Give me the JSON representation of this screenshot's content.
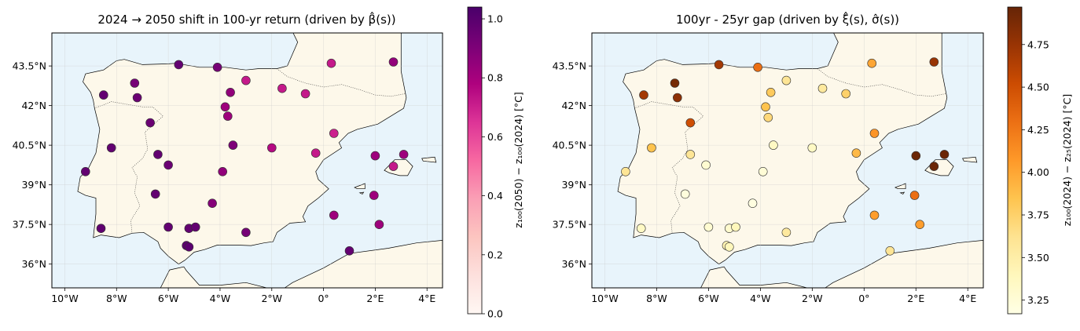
{
  "chart_data": [
    {
      "type": "scatter",
      "title": "2024 → 2050 shift in 100-yr return (driven by β̂(s))",
      "xlabel": "",
      "ylabel": "",
      "xlim": [
        -10.5,
        4.6
      ],
      "ylim": [
        35.1,
        44.75
      ],
      "x_ticks": [
        -10,
        -8,
        -6,
        -4,
        -2,
        0,
        2,
        4
      ],
      "x_tick_labels": [
        "10°W",
        "8°W",
        "6°W",
        "4°W",
        "2°W",
        "0°",
        "2°E",
        "4°E"
      ],
      "y_ticks": [
        36,
        37.5,
        39,
        40.5,
        42,
        43.5
      ],
      "y_tick_labels": [
        "36°N",
        "37.5°N",
        "39°N",
        "40.5°N",
        "42°N",
        "43.5°N"
      ],
      "colorbar": {
        "label": "z₁₀₀(2050) − z₁₀₀(2024) [°C]",
        "range": [
          0.0,
          1.04
        ],
        "ticks": [
          0.0,
          0.2,
          0.4,
          0.6,
          0.8,
          1.0
        ],
        "tick_labels": [
          "0.0",
          "0.2",
          "0.4",
          "0.6",
          "0.8",
          "1.0"
        ],
        "colormap": "RdPu",
        "stops": [
          "#fff7f3",
          "#fde0dd",
          "#fcc5c0",
          "#fa9fb5",
          "#f768a1",
          "#dd3497",
          "#ae017e",
          "#7a0177",
          "#49006a"
        ]
      },
      "points": [
        {
          "lon": -5.6,
          "lat": 43.55,
          "value": 0.97
        },
        {
          "lon": -4.1,
          "lat": 43.45,
          "value": 0.92
        },
        {
          "lon": 0.3,
          "lat": 43.6,
          "value": 0.72
        },
        {
          "lon": 2.7,
          "lat": 43.65,
          "value": 0.85
        },
        {
          "lon": -7.3,
          "lat": 42.85,
          "value": 0.92
        },
        {
          "lon": -8.5,
          "lat": 42.4,
          "value": 0.97
        },
        {
          "lon": -7.2,
          "lat": 42.3,
          "value": 0.95
        },
        {
          "lon": -3.0,
          "lat": 42.95,
          "value": 0.72
        },
        {
          "lon": -3.6,
          "lat": 42.5,
          "value": 0.85
        },
        {
          "lon": -1.6,
          "lat": 42.65,
          "value": 0.72
        },
        {
          "lon": -0.7,
          "lat": 42.45,
          "value": 0.72
        },
        {
          "lon": -3.8,
          "lat": 41.95,
          "value": 0.82
        },
        {
          "lon": -6.7,
          "lat": 41.35,
          "value": 0.95
        },
        {
          "lon": -3.7,
          "lat": 41.6,
          "value": 0.82
        },
        {
          "lon": 0.4,
          "lat": 40.95,
          "value": 0.7
        },
        {
          "lon": -8.2,
          "lat": 40.4,
          "value": 0.97
        },
        {
          "lon": -3.5,
          "lat": 40.5,
          "value": 0.9
        },
        {
          "lon": -2.0,
          "lat": 40.4,
          "value": 0.76
        },
        {
          "lon": -0.3,
          "lat": 40.2,
          "value": 0.72
        },
        {
          "lon": -6.4,
          "lat": 40.15,
          "value": 0.97
        },
        {
          "lon": 2.0,
          "lat": 40.1,
          "value": 0.82
        },
        {
          "lon": 3.1,
          "lat": 40.15,
          "value": 0.82
        },
        {
          "lon": -9.2,
          "lat": 39.5,
          "value": 0.97
        },
        {
          "lon": -6.0,
          "lat": 39.75,
          "value": 0.95
        },
        {
          "lon": -3.9,
          "lat": 39.5,
          "value": 0.85
        },
        {
          "lon": 2.7,
          "lat": 39.7,
          "value": 0.72
        },
        {
          "lon": -6.5,
          "lat": 38.65,
          "value": 0.97
        },
        {
          "lon": 1.95,
          "lat": 38.6,
          "value": 0.82
        },
        {
          "lon": -4.3,
          "lat": 38.3,
          "value": 0.88
        },
        {
          "lon": 0.4,
          "lat": 37.85,
          "value": 0.82
        },
        {
          "lon": 2.15,
          "lat": 37.5,
          "value": 0.82
        },
        {
          "lon": -8.6,
          "lat": 37.35,
          "value": 0.98
        },
        {
          "lon": -6.0,
          "lat": 37.4,
          "value": 0.97
        },
        {
          "lon": -5.2,
          "lat": 37.35,
          "value": 0.97
        },
        {
          "lon": -4.95,
          "lat": 37.4,
          "value": 0.97
        },
        {
          "lon": -3.0,
          "lat": 37.2,
          "value": 0.92
        },
        {
          "lon": -5.3,
          "lat": 36.7,
          "value": 0.99
        },
        {
          "lon": -5.2,
          "lat": 36.65,
          "value": 0.99
        },
        {
          "lon": 1.0,
          "lat": 36.5,
          "value": 0.97
        }
      ]
    },
    {
      "type": "scatter",
      "title": "100yr - 25yr gap (driven by ξ̂(s), σ̂(s))",
      "xlabel": "",
      "ylabel": "",
      "xlim": [
        -10.5,
        4.6
      ],
      "ylim": [
        35.1,
        44.75
      ],
      "x_ticks": [
        -10,
        -8,
        -6,
        -4,
        -2,
        0,
        2,
        4
      ],
      "x_tick_labels": [
        "10°W",
        "8°W",
        "6°W",
        "4°W",
        "2°W",
        "0°",
        "2°E",
        "4°E"
      ],
      "y_ticks": [
        36,
        37.5,
        39,
        40.5,
        42,
        43.5
      ],
      "y_tick_labels": [
        "36°N",
        "37.5°N",
        "39°N",
        "40.5°N",
        "42°N",
        "43.5°N"
      ],
      "colorbar": {
        "label": "z₁₀₀(2024) − z₂₅(2024) [°C]",
        "range": [
          3.17,
          4.97
        ],
        "ticks": [
          3.25,
          3.5,
          3.75,
          4.0,
          4.25,
          4.5,
          4.75
        ],
        "tick_labels": [
          "3.25",
          "3.50",
          "3.75",
          "4.00",
          "4.25",
          "4.50",
          "4.75"
        ],
        "colormap": "YlOrBr",
        "stops": [
          "#ffffe5",
          "#fff7bc",
          "#fee391",
          "#fec44f",
          "#fe9929",
          "#ec7014",
          "#cc4c02",
          "#993404",
          "#662506"
        ]
      },
      "points": [
        {
          "lon": -5.6,
          "lat": 43.55,
          "value": 4.7
        },
        {
          "lon": -4.1,
          "lat": 43.45,
          "value": 4.3
        },
        {
          "lon": 0.3,
          "lat": 43.6,
          "value": 4.0
        },
        {
          "lon": 2.7,
          "lat": 43.65,
          "value": 4.75
        },
        {
          "lon": -7.3,
          "lat": 42.85,
          "value": 4.9
        },
        {
          "lon": -8.5,
          "lat": 42.4,
          "value": 4.7
        },
        {
          "lon": -7.2,
          "lat": 42.3,
          "value": 4.8
        },
        {
          "lon": -3.0,
          "lat": 42.95,
          "value": 3.6
        },
        {
          "lon": -3.6,
          "lat": 42.5,
          "value": 3.8
        },
        {
          "lon": -1.6,
          "lat": 42.65,
          "value": 3.55
        },
        {
          "lon": -0.7,
          "lat": 42.45,
          "value": 3.75
        },
        {
          "lon": -3.8,
          "lat": 41.95,
          "value": 3.85
        },
        {
          "lon": -6.7,
          "lat": 41.35,
          "value": 4.5
        },
        {
          "lon": -3.7,
          "lat": 41.55,
          "value": 3.7
        },
        {
          "lon": 0.4,
          "lat": 40.95,
          "value": 4.1
        },
        {
          "lon": -8.2,
          "lat": 40.4,
          "value": 3.85
        },
        {
          "lon": -3.5,
          "lat": 40.5,
          "value": 3.35
        },
        {
          "lon": -2.0,
          "lat": 40.4,
          "value": 3.35
        },
        {
          "lon": -0.3,
          "lat": 40.2,
          "value": 3.9
        },
        {
          "lon": -6.7,
          "lat": 40.15,
          "value": 3.6
        },
        {
          "lon": 2.0,
          "lat": 40.1,
          "value": 4.95
        },
        {
          "lon": 3.1,
          "lat": 40.15,
          "value": 4.95
        },
        {
          "lon": -9.2,
          "lat": 39.5,
          "value": 3.6
        },
        {
          "lon": -6.1,
          "lat": 39.75,
          "value": 3.28
        },
        {
          "lon": -3.9,
          "lat": 39.5,
          "value": 3.25
        },
        {
          "lon": 2.7,
          "lat": 39.7,
          "value": 4.95
        },
        {
          "lon": -6.9,
          "lat": 38.65,
          "value": 3.22
        },
        {
          "lon": 1.95,
          "lat": 38.6,
          "value": 4.3
        },
        {
          "lon": -4.3,
          "lat": 38.3,
          "value": 3.2
        },
        {
          "lon": 0.4,
          "lat": 37.85,
          "value": 4.05
        },
        {
          "lon": 2.15,
          "lat": 37.5,
          "value": 4.05
        },
        {
          "lon": -8.6,
          "lat": 37.35,
          "value": 3.35
        },
        {
          "lon": -6.0,
          "lat": 37.4,
          "value": 3.28
        },
        {
          "lon": -5.2,
          "lat": 37.35,
          "value": 3.3
        },
        {
          "lon": -4.95,
          "lat": 37.4,
          "value": 3.4
        },
        {
          "lon": -3.0,
          "lat": 37.2,
          "value": 3.55
        },
        {
          "lon": -5.3,
          "lat": 36.7,
          "value": 3.45
        },
        {
          "lon": -5.2,
          "lat": 36.65,
          "value": 3.4
        },
        {
          "lon": 1.0,
          "lat": 36.5,
          "value": 3.6
        }
      ]
    }
  ],
  "colors": {
    "sea": "#e8f4fb",
    "land": "#fdf8ea",
    "grid": "#c9c9c9",
    "marker_edge": "#333333"
  }
}
